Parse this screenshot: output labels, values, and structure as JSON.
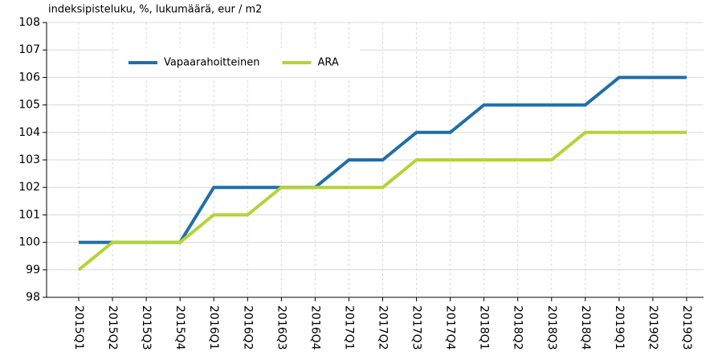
{
  "chart_data": {
    "type": "line",
    "ylabel": "indeksipisteluku, %, lukumäärä, eur / m2",
    "categories": [
      "2015Q1",
      "2015Q2",
      "2015Q3",
      "2015Q4",
      "2016Q1",
      "2016Q2",
      "2016Q3",
      "2016Q4",
      "2017Q1",
      "2017Q2",
      "2017Q3",
      "2017Q4",
      "2018Q1",
      "2018Q2",
      "2018Q3",
      "2018Q4",
      "2019Q1",
      "2019Q2",
      "2019Q3"
    ],
    "series": [
      {
        "name": "Vapaarahoitteinen",
        "color": "#1f6fa8",
        "values": [
          100,
          100,
          100,
          100,
          102,
          102,
          102,
          102,
          103,
          103,
          104,
          104,
          105,
          105,
          105,
          105,
          106,
          106,
          106
        ]
      },
      {
        "name": "ARA",
        "color": "#b5d334",
        "values": [
          99,
          100,
          100,
          100,
          101,
          101,
          102,
          102,
          102,
          102,
          103,
          103,
          103,
          103,
          103,
          104,
          104,
          104,
          104
        ]
      }
    ],
    "ylim": [
      98,
      108
    ],
    "yticks": [
      98,
      99,
      100,
      101,
      102,
      103,
      104,
      105,
      106,
      107,
      108
    ],
    "grid": true,
    "legend": "upper left"
  }
}
